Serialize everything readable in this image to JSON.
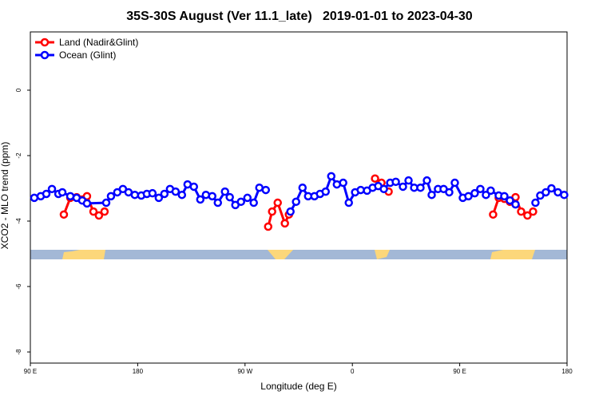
{
  "chart_data": {
    "type": "line",
    "title": "35S-30S August (Ver 11.1_late)   2019-01-01 to 2023-04-30",
    "x_label": "Longitude (deg E)",
    "y_label": "XCO2 - MLO trend (ppm)",
    "xlim": [
      90,
      540
    ],
    "ylim": [
      -8.34,
      1.78
    ],
    "xticks": [
      {
        "value": 90,
        "label": "90 E"
      },
      180,
      {
        "value": 270,
        "label": "90 W"
      },
      {
        "value": 360,
        "label": "0"
      },
      {
        "value": 450,
        "label": "90 E"
      },
      180
    ],
    "yticks": [
      -8,
      -6,
      -4,
      -2,
      0
    ],
    "legend": "top-left",
    "series": [
      {
        "name": "Land (Nadir&Glint)",
        "color": "#ff0000",
        "x": [
          118.1,
          123.5,
          128.8,
          137.5,
          142.9,
          147.5,
          152.2,
          220,
          289.4,
          292.7,
          297.4,
          303.4,
          306.8,
          350,
          379.0,
          384.4,
          390.4,
          450,
          478.0,
          482.7,
          487.4,
          492.1,
          496.8,
          501.5,
          506.8,
          511.5
        ],
        "values": [
          -3.8,
          -3.29,
          -3.27,
          -3.24,
          -3.71,
          -3.83,
          -3.71,
          null,
          -4.17,
          -3.71,
          -3.44,
          -4.07,
          -3.8,
          null,
          -2.7,
          -2.83,
          -3.1,
          null,
          -3.8,
          -3.29,
          -3.32,
          -3.41,
          -3.27,
          -3.71,
          -3.83,
          -3.71
        ]
      },
      {
        "name": "Ocean (Glint)",
        "color": "#0000ff",
        "x": [
          93.3,
          98.7,
          103.4,
          108.1,
          113.5,
          116.8,
          123.5,
          128.8,
          133.5,
          137.5,
          153.6,
          157.6,
          162.9,
          167.6,
          172.3,
          177.6,
          183.0,
          187.7,
          192.4,
          197.7,
          202.4,
          207.1,
          211.8,
          217.1,
          221.8,
          227.1,
          232.5,
          237.2,
          242.5,
          247.2,
          253.2,
          257.2,
          261.9,
          266.6,
          272.0,
          277.3,
          282.0,
          287.4,
          300,
          308.1,
          312.8,
          318.2,
          322.9,
          328.2,
          332.9,
          337.6,
          342.3,
          347.0,
          352.3,
          357.0,
          362.3,
          367.0,
          372.3,
          377.0,
          381.7,
          386.4,
          391.7,
          396.4,
          402.4,
          407.1,
          411.8,
          417.1,
          422.5,
          426.5,
          431.8,
          436.5,
          441.2,
          445.9,
          452.6,
          457.3,
          462.6,
          467.3,
          472.0,
          476.0,
          482.7,
          487.4,
          492.1,
          496.8,
          505,
          513.5,
          517.5,
          522.2,
          526.9,
          532.3,
          537.6
        ],
        "values": [
          -3.29,
          -3.24,
          -3.17,
          -3.02,
          -3.17,
          -3.12,
          -3.24,
          -3.29,
          -3.37,
          -3.46,
          -3.44,
          -3.24,
          -3.12,
          -3.02,
          -3.12,
          -3.2,
          -3.22,
          -3.17,
          -3.15,
          -3.29,
          -3.17,
          -3.02,
          -3.1,
          -3.2,
          -2.88,
          -2.95,
          -3.34,
          -3.2,
          -3.24,
          -3.44,
          -3.1,
          -3.27,
          -3.51,
          -3.41,
          -3.29,
          -3.44,
          -2.98,
          -3.05,
          null,
          -3.71,
          -3.41,
          -2.98,
          -3.24,
          -3.24,
          -3.17,
          -3.1,
          -2.63,
          -2.88,
          -2.83,
          -3.44,
          -3.12,
          -3.05,
          -3.07,
          -2.98,
          -2.93,
          -3.02,
          -2.83,
          -2.8,
          -2.95,
          -2.76,
          -2.98,
          -2.98,
          -2.76,
          -3.2,
          -3.02,
          -3.02,
          -3.12,
          -2.83,
          -3.29,
          -3.24,
          -3.15,
          -3.02,
          -3.2,
          -3.07,
          -3.22,
          -3.24,
          -3.37,
          -3.49,
          null,
          -3.44,
          -3.22,
          -3.12,
          -3.0,
          -3.12,
          -3.2
        ]
      }
    ]
  }
}
